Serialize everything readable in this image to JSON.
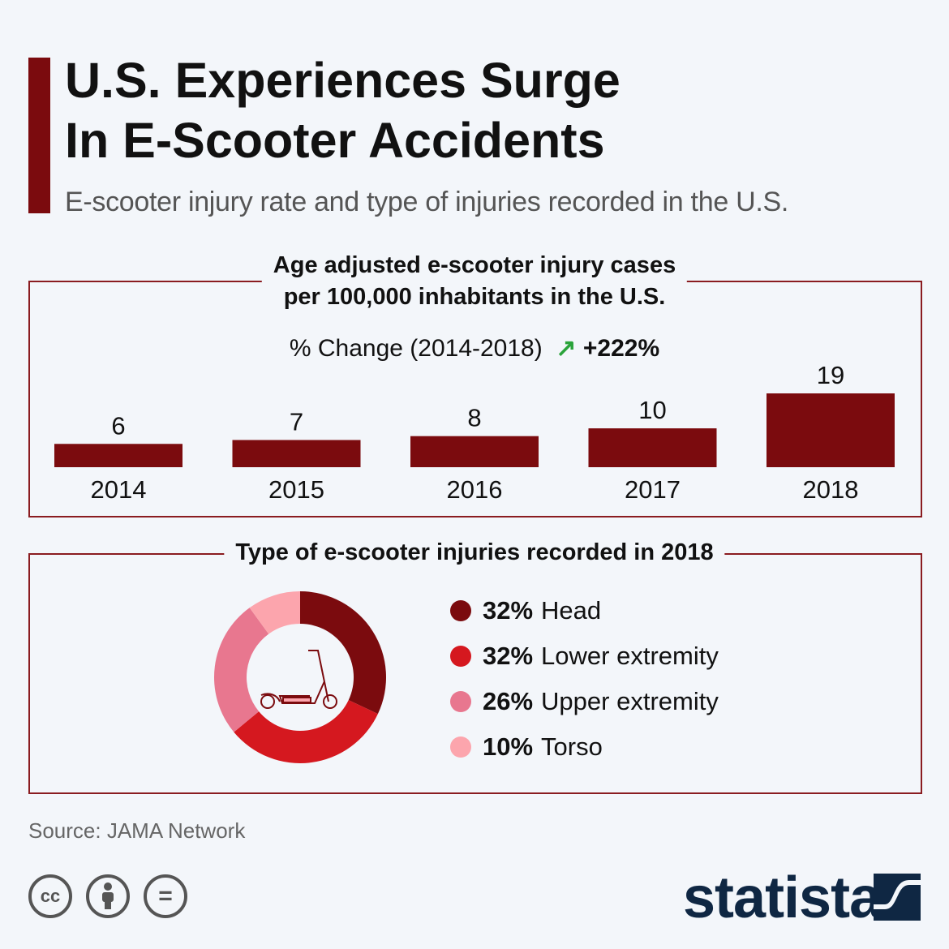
{
  "header": {
    "title_line1": "U.S. Experiences Surge",
    "title_line2": "In E-Scooter Accidents",
    "subtitle": "E-scooter injury rate and type of injuries recorded in the U.S."
  },
  "colors": {
    "accent": "#7b0b0e",
    "green": "#2aa33a",
    "brand": "#0f2743"
  },
  "chart_data": [
    {
      "type": "bar",
      "title": "Age adjusted e-scooter injury cases per 100,000 inhabitants in the U.S.",
      "title_line1": "Age adjusted e-scooter injury cases",
      "title_line2": "per 100,000 inhabitants in the U.S.",
      "change_label": "% Change (2014-2018)",
      "change_value": "+222%",
      "change_icon": "arrow-up-right-icon",
      "categories": [
        "2014",
        "2015",
        "2016",
        "2017",
        "2018"
      ],
      "values": [
        6,
        7,
        8,
        10,
        19
      ],
      "color": "#7b0b0e",
      "ylim": [
        0,
        19
      ]
    },
    {
      "type": "pie",
      "title": "Type of e-scooter injuries recorded in 2018",
      "style": "donut",
      "center_icon": "scooter-icon",
      "slices": [
        {
          "label": "Head",
          "pct_label": "32%",
          "value": 32,
          "color": "#7b0b0e"
        },
        {
          "label": "Lower extremity",
          "pct_label": "32%",
          "value": 32,
          "color": "#d5181f"
        },
        {
          "label": "Upper extremity",
          "pct_label": "26%",
          "value": 26,
          "color": "#e8778f"
        },
        {
          "label": "Torso",
          "pct_label": "10%",
          "value": 10,
          "color": "#fca5ad"
        }
      ]
    }
  ],
  "footer": {
    "source": "Source: JAMA Network",
    "logo": "statista",
    "license_icons": [
      "cc-icon",
      "attribution-icon",
      "no-derivatives-icon"
    ],
    "cc_text": "cc",
    "nd_text": "="
  }
}
